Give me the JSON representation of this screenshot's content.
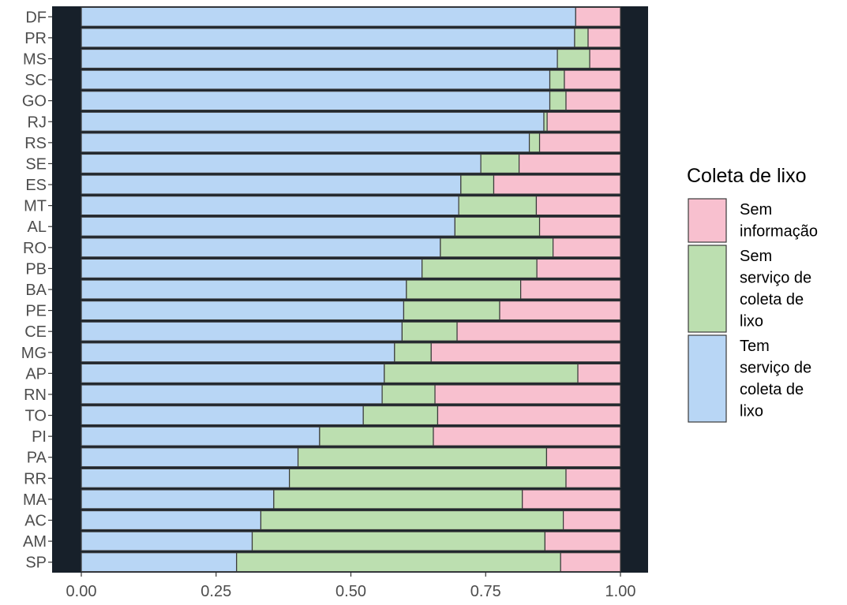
{
  "chart_data": {
    "type": "bar",
    "orientation": "horizontal",
    "stacked": true,
    "normalized": true,
    "categories": [
      "DF",
      "PR",
      "MS",
      "SC",
      "GO",
      "RJ",
      "RS",
      "SE",
      "ES",
      "MT",
      "AL",
      "RO",
      "PB",
      "BA",
      "PE",
      "CE",
      "MG",
      "AP",
      "RN",
      "TO",
      "PI",
      "PA",
      "RR",
      "MA",
      "AC",
      "AM",
      "SP"
    ],
    "series": [
      {
        "name": "Tem serviço de coleta de lixo",
        "color": "#b8d6f5",
        "values": [
          0.917,
          0.915,
          0.883,
          0.869,
          0.869,
          0.858,
          0.831,
          0.741,
          0.704,
          0.7,
          0.693,
          0.666,
          0.632,
          0.603,
          0.598,
          0.595,
          0.581,
          0.562,
          0.558,
          0.523,
          0.442,
          0.402,
          0.386,
          0.357,
          0.333,
          0.317,
          0.288
        ]
      },
      {
        "name": "Sem serviço de coleta de lixo",
        "color": "#bcdfb0",
        "values": [
          0,
          0.025,
          0.06,
          0.027,
          0.03,
          0.006,
          0.019,
          0.071,
          0.061,
          0.144,
          0.157,
          0.209,
          0.213,
          0.212,
          0.178,
          0.102,
          0.068,
          0.359,
          0.098,
          0.138,
          0.211,
          0.461,
          0.513,
          0.461,
          0.561,
          0.543,
          0.601
        ]
      },
      {
        "name": "Sem informação",
        "color": "#f8c0cf",
        "values": [
          0.083,
          0.06,
          0.057,
          0.104,
          0.101,
          0.136,
          0.15,
          0.188,
          0.235,
          0.156,
          0.15,
          0.125,
          0.155,
          0.185,
          0.224,
          0.303,
          0.351,
          0.079,
          0.344,
          0.339,
          0.347,
          0.137,
          0.101,
          0.182,
          0.106,
          0.14,
          0.111
        ]
      }
    ],
    "xlim": [
      -0.05,
      1.05
    ],
    "xticks": [
      0,
      0.25,
      0.5,
      0.75,
      1.0
    ],
    "xtick_labels": [
      "0.00",
      "0.25",
      "0.50",
      "0.75",
      "1.00"
    ],
    "xlabel": "",
    "ylabel": "",
    "panel_background": "#17202a",
    "grid": false,
    "legend": {
      "title": "Coleta de lixo",
      "position": "right",
      "entries": [
        {
          "color": "#f8c0cf",
          "lines": [
            "Sem",
            "informação"
          ]
        },
        {
          "color": "#bcdfb0",
          "lines": [
            "Sem",
            "serviço de",
            "coleta de",
            "lixo"
          ]
        },
        {
          "color": "#b8d6f5",
          "lines": [
            "Tem",
            "serviço de",
            "coleta de",
            "lixo"
          ]
        }
      ]
    }
  }
}
